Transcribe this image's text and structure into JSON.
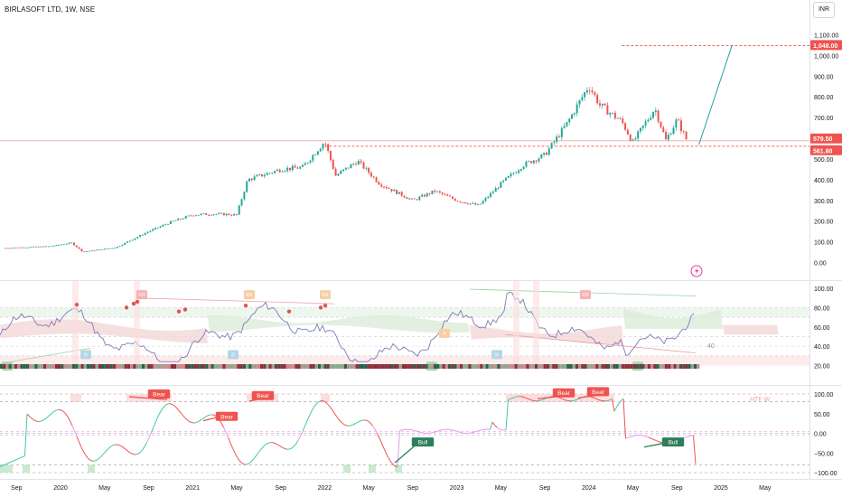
{
  "header": {
    "title": "BIRLASOFT LTD, 1W, NSE",
    "currency": "INR"
  },
  "colors": {
    "up": "#26a69a",
    "down": "#ef5350",
    "rsi": "#7e7ab8",
    "grid": "#f0f3fa",
    "level": "#ef5350",
    "target": "#26a69a",
    "bearTag": "#ef5350",
    "bullTag": "#2e7d5b"
  },
  "chart_data": [
    {
      "type": "candlestick",
      "title": "BIRLASOFT LTD, 1W, NSE",
      "y_ticks": [
        "1,100.00",
        "1,000.00",
        "900.00",
        "800.00",
        "700.00",
        "600.00",
        "500.00",
        "400.00",
        "300.00",
        "200.00",
        "100.00",
        "0.00"
      ],
      "ylim": [
        0,
        1100
      ],
      "x_ticks": [
        "Sep",
        "2020",
        "May",
        "Sep",
        "2021",
        "May",
        "Sep",
        "2022",
        "May",
        "Sep",
        "2023",
        "May",
        "Sep",
        "2024",
        "May",
        "Sep",
        "2025",
        "May"
      ],
      "price_labels": [
        {
          "text": "1,048.00",
          "value": 1048
        },
        {
          "text": "579.50",
          "value": 579.5
        },
        {
          "text": "561.80",
          "value": 561.8
        }
      ],
      "close_series": [
        {
          "date": "2019-08",
          "close": 70
        },
        {
          "date": "2019-12",
          "close": 78
        },
        {
          "date": "2020-02",
          "close": 95
        },
        {
          "date": "2020-03",
          "close": 52
        },
        {
          "date": "2020-06",
          "close": 72
        },
        {
          "date": "2020-09",
          "close": 150
        },
        {
          "date": "2020-11",
          "close": 195
        },
        {
          "date": "2021-01",
          "close": 230
        },
        {
          "date": "2021-03",
          "close": 235
        },
        {
          "date": "2021-05",
          "close": 230
        },
        {
          "date": "2021-06",
          "close": 400
        },
        {
          "date": "2021-09",
          "close": 450
        },
        {
          "date": "2021-11",
          "close": 460
        },
        {
          "date": "2022-01",
          "close": 585
        },
        {
          "date": "2022-02",
          "close": 420
        },
        {
          "date": "2022-04",
          "close": 490
        },
        {
          "date": "2022-06",
          "close": 380
        },
        {
          "date": "2022-09",
          "close": 300
        },
        {
          "date": "2022-11",
          "close": 345
        },
        {
          "date": "2023-01",
          "close": 300
        },
        {
          "date": "2023-03",
          "close": 275
        },
        {
          "date": "2023-05",
          "close": 380
        },
        {
          "date": "2023-07",
          "close": 470
        },
        {
          "date": "2023-09",
          "close": 520
        },
        {
          "date": "2023-11",
          "close": 670
        },
        {
          "date": "2024-01",
          "close": 855
        },
        {
          "date": "2024-02",
          "close": 760
        },
        {
          "date": "2024-04",
          "close": 680
        },
        {
          "date": "2024-05",
          "close": 580
        },
        {
          "date": "2024-07",
          "close": 745
        },
        {
          "date": "2024-08",
          "close": 590
        },
        {
          "date": "2024-09",
          "close": 690
        },
        {
          "date": "2024-10",
          "close": 579.5
        }
      ],
      "levels": [
        561.8,
        1048
      ],
      "target": {
        "from": {
          "date": "2024-11",
          "value": 570
        },
        "to": {
          "date": "2025-02",
          "value": 1048
        }
      }
    },
    {
      "type": "line",
      "name": "RSI",
      "y_ticks": [
        "100.00",
        "80.00",
        "60.00",
        "40.00",
        "20.00"
      ],
      "ylim": [
        15,
        105
      ],
      "last_value_label": "40",
      "markers": [
        "RR",
        "RR",
        "RR",
        "R",
        "R",
        "RR",
        "RR",
        "R"
      ]
    },
    {
      "type": "line",
      "name": "Oscillator",
      "y_ticks": [
        "100.00",
        "50.00",
        "0.00",
        "−50.00",
        "−100.00"
      ],
      "ylim": [
        -110,
        110
      ],
      "annotation": "HTF W",
      "divergences": [
        "Bear",
        "Bear",
        "Bear",
        "Bull",
        "Bear",
        "Bear",
        "Bull"
      ]
    }
  ]
}
